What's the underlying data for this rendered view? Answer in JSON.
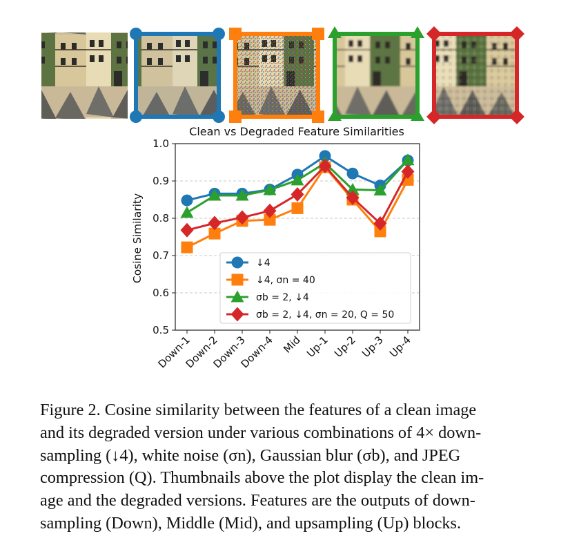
{
  "thumbnails": [
    {
      "name": "clean",
      "border_color": null,
      "marker": null
    },
    {
      "name": "down4",
      "border_color": "#1f77b4",
      "marker": "circle"
    },
    {
      "name": "down4-noise",
      "border_color": "#ff7f0e",
      "marker": "square"
    },
    {
      "name": "blur-down4",
      "border_color": "#2ca02c",
      "marker": "triangle"
    },
    {
      "name": "blur-down4-noise-jpeg",
      "border_color": "#d62728",
      "marker": "diamond"
    }
  ],
  "chart_data": {
    "type": "line",
    "title": "Clean vs Degraded Feature Similarities",
    "xlabel": "",
    "ylabel": "Cosine Similarity",
    "categories": [
      "Down-1",
      "Down-2",
      "Down-3",
      "Down-4",
      "Mid",
      "Up-1",
      "Up-2",
      "Up-3",
      "Up-4"
    ],
    "ylim": [
      0.5,
      1.0
    ],
    "yticks": [
      "0.5",
      "0.6",
      "0.7",
      "0.8",
      "0.9",
      "1.0"
    ],
    "grid": "horizontal-dashed",
    "legend_position": "bottom-right",
    "series": [
      {
        "name": "↓4",
        "color": "#1f77b4",
        "marker": "circle",
        "values": [
          0.848,
          0.866,
          0.866,
          0.877,
          0.917,
          0.967,
          0.92,
          0.888,
          0.955
        ]
      },
      {
        "name": "↓4, σn = 40",
        "color": "#ff7f0e",
        "marker": "square",
        "values": [
          0.722,
          0.759,
          0.793,
          0.796,
          0.827,
          0.937,
          0.85,
          0.765,
          0.903
        ]
      },
      {
        "name": "σb = 2, ↓4",
        "color": "#2ca02c",
        "marker": "triangle",
        "values": [
          0.815,
          0.861,
          0.861,
          0.876,
          0.902,
          0.948,
          0.877,
          0.875,
          0.956
        ]
      },
      {
        "name": "σb = 2, ↓4, σn = 20, Q = 50",
        "color": "#d62728",
        "marker": "diamond",
        "values": [
          0.768,
          0.787,
          0.802,
          0.82,
          0.864,
          0.94,
          0.855,
          0.786,
          0.925
        ]
      }
    ]
  },
  "caption": {
    "lines": [
      "Figure 2. Cosine similarity between the features of a clean image",
      "and its degraded version under various combinations of 4× down-",
      "sampling (↓4), white noise (σn), Gaussian blur (σb), and JPEG",
      "compression (Q). Thumbnails above the plot display the clean im-",
      "age and the degraded versions. Features are the outputs of down-",
      "sampling (Down), Middle (Mid), and upsampling (Up) blocks."
    ]
  }
}
